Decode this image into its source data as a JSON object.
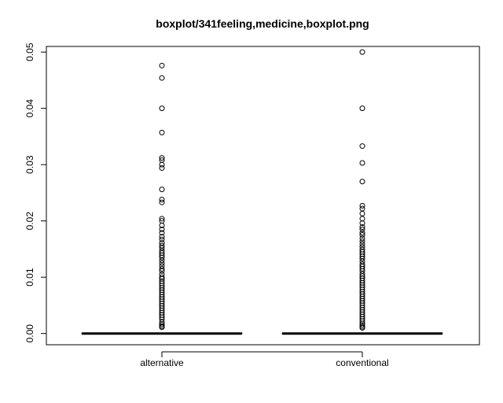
{
  "chart_data": {
    "type": "boxplot",
    "title": "boxplot/341feeling,medicine,boxplot.png",
    "xlabel": "",
    "ylabel": "",
    "ylim": [
      -0.002,
      0.051
    ],
    "yticks": [
      {
        "value": 0.0,
        "label": "0.00"
      },
      {
        "value": 0.01,
        "label": "0.01"
      },
      {
        "value": 0.02,
        "label": "0.02"
      },
      {
        "value": 0.03,
        "label": "0.03"
      },
      {
        "value": 0.04,
        "label": "0.04"
      },
      {
        "value": 0.05,
        "label": "0.05"
      }
    ],
    "grid": false,
    "groups": [
      {
        "label": "alternative",
        "median": 0.0,
        "q1": 0.0,
        "q3": 0.0,
        "whisker_low": 0.0,
        "whisker_high": 0.0,
        "outliers": [
          0.0476,
          0.0454,
          0.04,
          0.0357,
          0.0312,
          0.0308,
          0.03,
          0.0294,
          0.0256,
          0.0238,
          0.0233,
          0.0204,
          0.02,
          0.0192,
          0.0185,
          0.0179,
          0.0172,
          0.0167,
          0.0161,
          0.0156,
          0.0152,
          0.0147,
          0.0143,
          0.0139,
          0.0135,
          0.013,
          0.0125,
          0.012,
          0.0115,
          0.0111,
          0.0105,
          0.01,
          0.0097,
          0.0093,
          0.0089,
          0.0085,
          0.0081,
          0.0077,
          0.0073,
          0.0069,
          0.0065,
          0.0061,
          0.0057,
          0.0053,
          0.0049,
          0.0045,
          0.0041,
          0.0037,
          0.0033,
          0.0029,
          0.0025,
          0.002,
          0.0016,
          0.0013,
          0.0011
        ]
      },
      {
        "label": "conventional",
        "median": 0.0,
        "q1": 0.0,
        "q3": 0.0,
        "whisker_low": 0.0,
        "whisker_high": 0.0,
        "outliers": [
          0.05,
          0.04,
          0.0333,
          0.0303,
          0.027,
          0.0227,
          0.0222,
          0.0213,
          0.0204,
          0.0196,
          0.0189,
          0.0185,
          0.0179,
          0.0175,
          0.0169,
          0.0164,
          0.0159,
          0.0154,
          0.0149,
          0.0145,
          0.0141,
          0.0137,
          0.0133,
          0.0128,
          0.0123,
          0.0119,
          0.0115,
          0.0111,
          0.0106,
          0.0102,
          0.0098,
          0.0094,
          0.009,
          0.0086,
          0.0082,
          0.0078,
          0.0074,
          0.007,
          0.0066,
          0.0062,
          0.0058,
          0.0054,
          0.005,
          0.0046,
          0.0042,
          0.0038,
          0.0034,
          0.003,
          0.0026,
          0.0022,
          0.0018,
          0.0015,
          0.0012,
          0.001
        ]
      }
    ]
  }
}
